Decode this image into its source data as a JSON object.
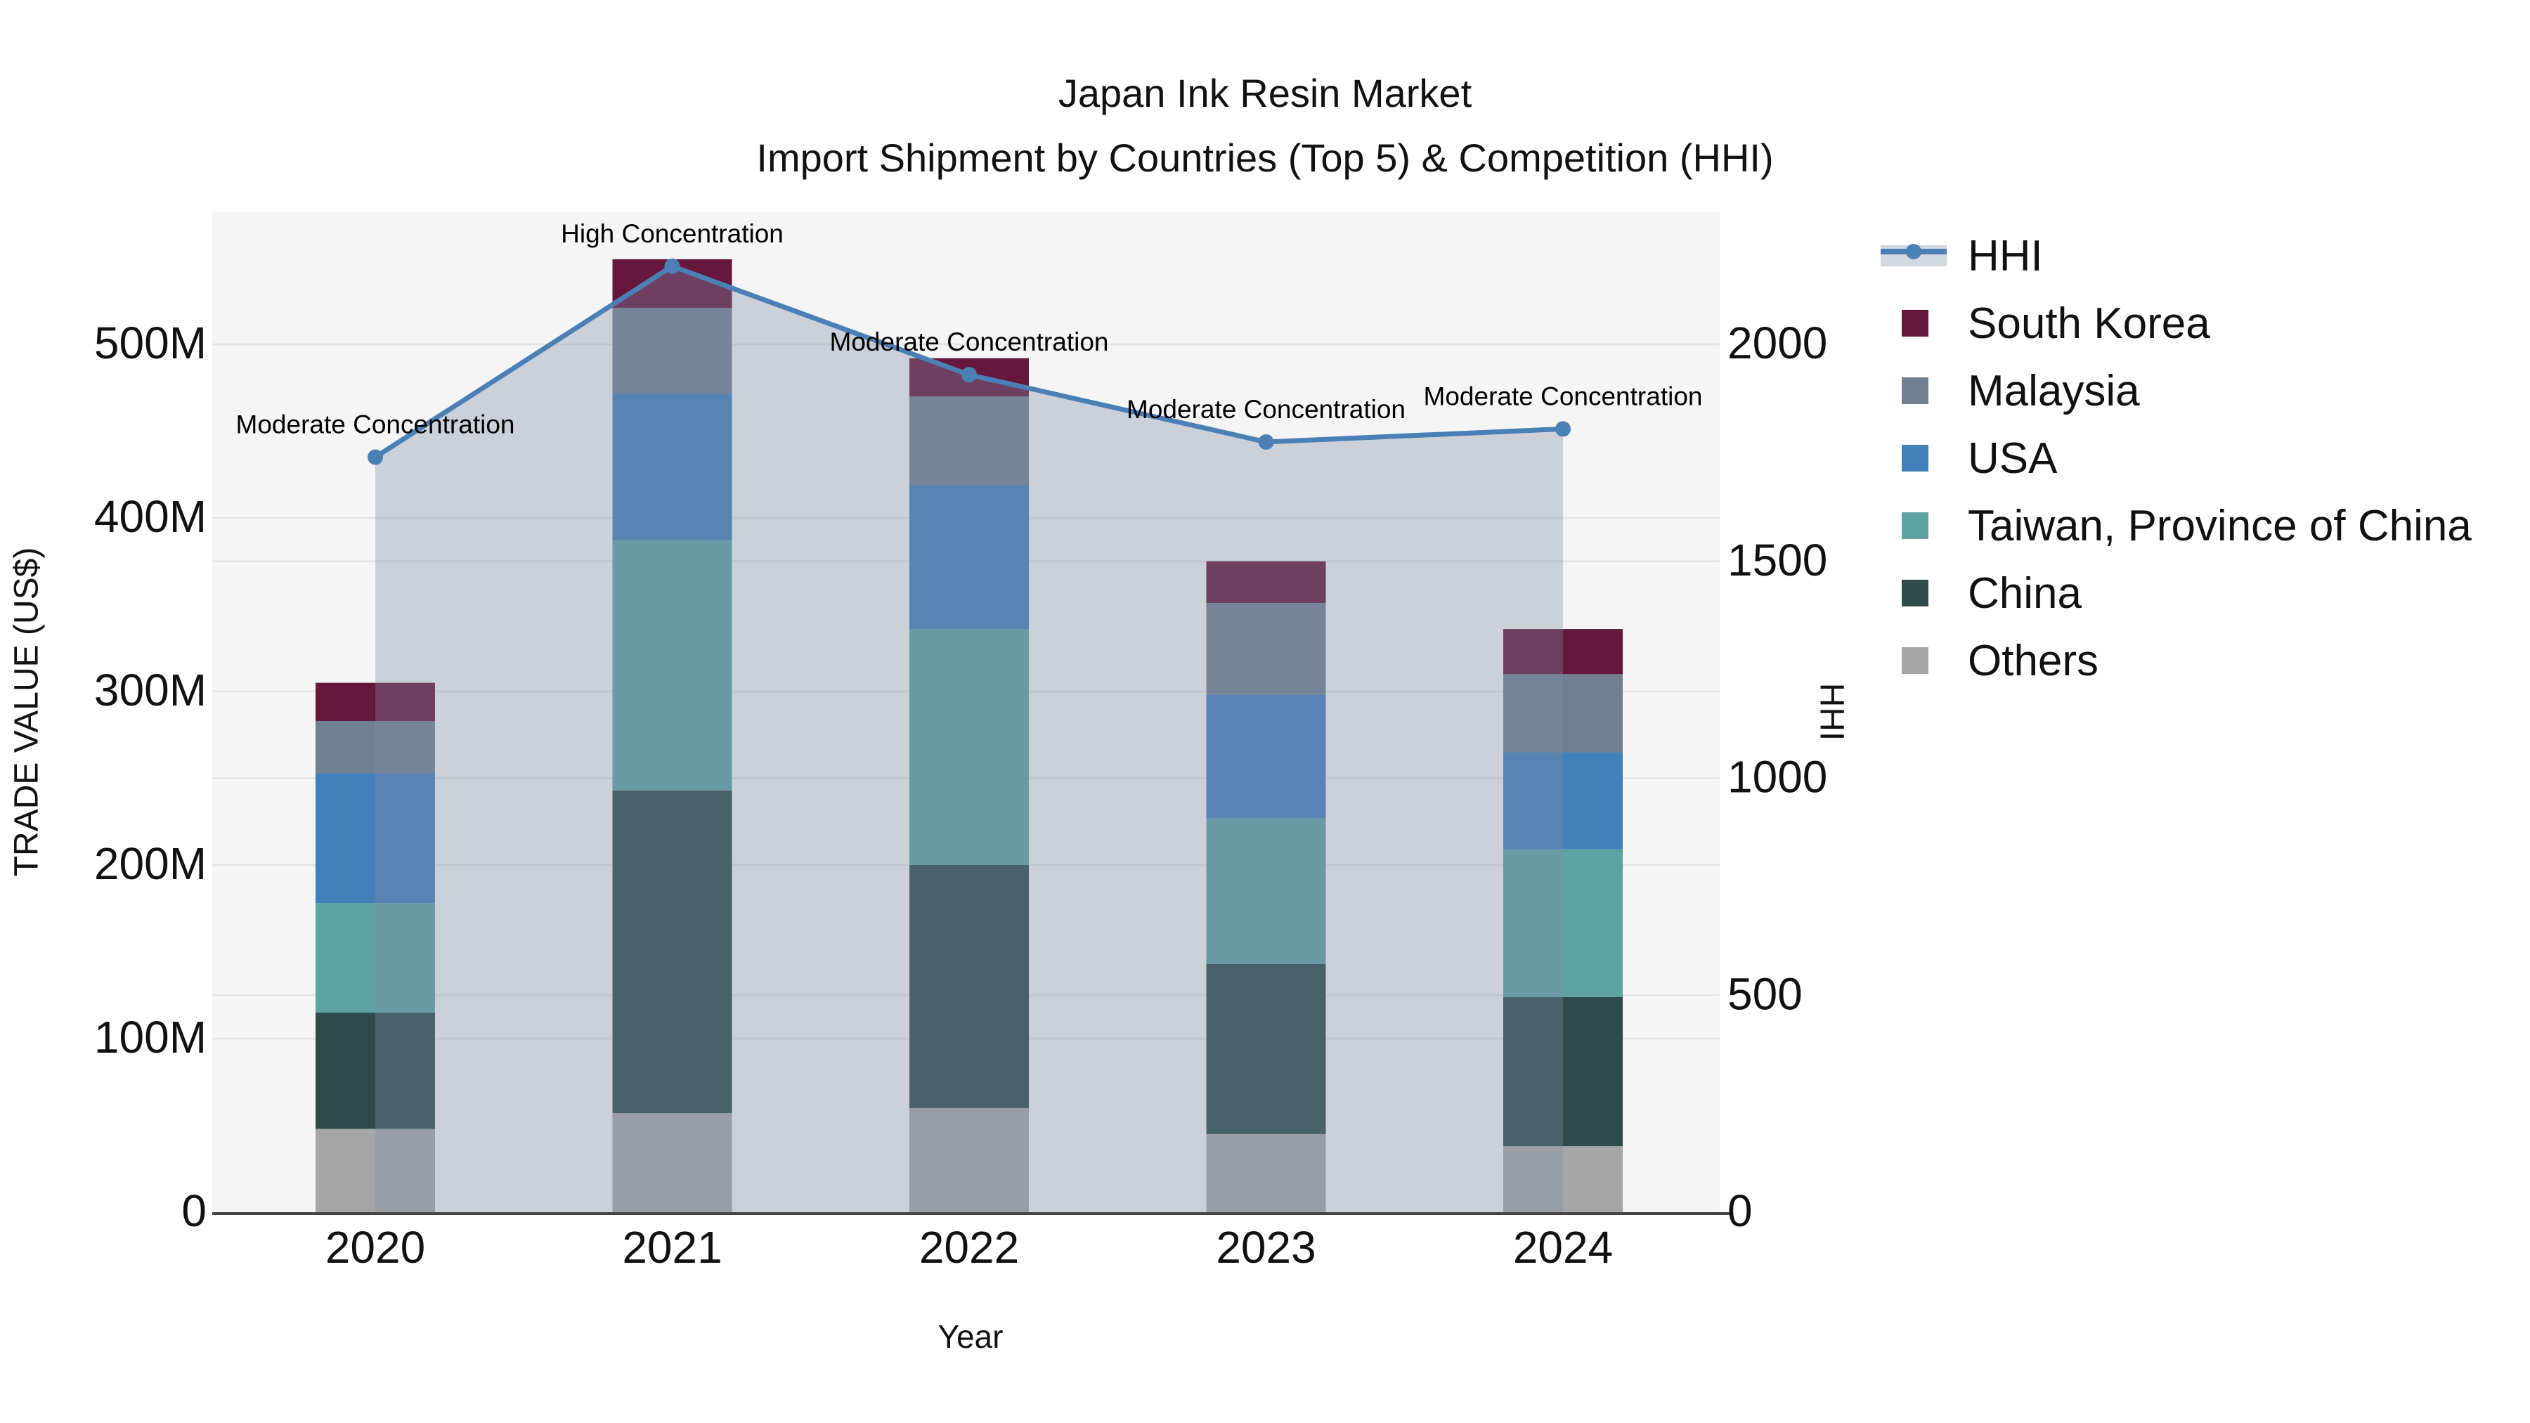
{
  "title": {
    "line1": "Japan Ink Resin Market",
    "line2": "Import Shipment by Countries (Top 5) & Competition (HHI)"
  },
  "axes": {
    "y_left_label": "TRADE VALUE (US$)",
    "y_right_label": "HHI",
    "x_label": "Year"
  },
  "colors": {
    "plot_background": "#f5f5f5",
    "gridline": "#e4e4e4",
    "axis_line": "#444444",
    "text": "#111111",
    "hhi_line": "#4a80b6",
    "hhi_area_fill": "rgba(125,140,165,0.35)"
  },
  "chart_data": {
    "type": "bar",
    "subtype": "stacked-bars-with-line-overlay",
    "title": "Japan Ink Resin Market — Import Shipment by Countries (Top 5) & Competition (HHI)",
    "categories": [
      "2020",
      "2021",
      "2022",
      "2023",
      "2024"
    ],
    "bar_unit": "M US$",
    "series": [
      {
        "name": "Others",
        "color": "#a6a6a6",
        "values": [
          48,
          57,
          60,
          45,
          38
        ]
      },
      {
        "name": "China",
        "color": "#2c4b4a",
        "values": [
          67,
          186,
          140,
          98,
          86
        ]
      },
      {
        "name": "Taiwan, Province of China",
        "color": "#5da3a1",
        "values": [
          63,
          144,
          136,
          84,
          85
        ]
      },
      {
        "name": "USA",
        "color": "#4280ba",
        "values": [
          75,
          85,
          83,
          71,
          56
        ]
      },
      {
        "name": "Malaysia",
        "color": "#708090",
        "values": [
          30,
          49,
          51,
          53,
          45
        ]
      },
      {
        "name": "South Korea",
        "color": "#65173c",
        "values": [
          22,
          28,
          22,
          24,
          26
        ]
      }
    ],
    "bar_totals": [
      305,
      549,
      492,
      375,
      336
    ],
    "line_series": {
      "name": "HHI",
      "values": [
        1740,
        2180,
        1930,
        1775,
        1805
      ]
    },
    "annotations": [
      "Moderate Concentration",
      "High Concentration",
      "Moderate Concentration",
      "Moderate Concentration",
      "Moderate Concentration"
    ],
    "xlabel": "Year",
    "ylabel_left": "TRADE VALUE (US$)",
    "ylabel_right": "HHI",
    "y_left_ticks": [
      {
        "value": 0,
        "label": "0"
      },
      {
        "value": 100,
        "label": "100M"
      },
      {
        "value": 200,
        "label": "200M"
      },
      {
        "value": 300,
        "label": "300M"
      },
      {
        "value": 400,
        "label": "400M"
      },
      {
        "value": 500,
        "label": "500M"
      }
    ],
    "y_right_ticks": [
      {
        "value": 0,
        "label": "0"
      },
      {
        "value": 500,
        "label": "500"
      },
      {
        "value": 1000,
        "label": "1000"
      },
      {
        "value": 1500,
        "label": "1500"
      },
      {
        "value": 2000,
        "label": "2000"
      }
    ],
    "ylim_left": [
      0,
      575
    ],
    "ylim_right": [
      0,
      2300
    ],
    "grid": true,
    "legend_position": "right",
    "legend": [
      {
        "name": "HHI",
        "symbol": "line-marker-band"
      },
      {
        "name": "South Korea",
        "symbol": "square",
        "color": "#65173c"
      },
      {
        "name": "Malaysia",
        "symbol": "square",
        "color": "#708090"
      },
      {
        "name": "USA",
        "symbol": "square",
        "color": "#4280ba"
      },
      {
        "name": "Taiwan, Province of China",
        "symbol": "square",
        "color": "#5da3a1"
      },
      {
        "name": "China",
        "symbol": "square",
        "color": "#2c4b4a"
      },
      {
        "name": "Others",
        "symbol": "square",
        "color": "#a6a6a6"
      }
    ]
  }
}
